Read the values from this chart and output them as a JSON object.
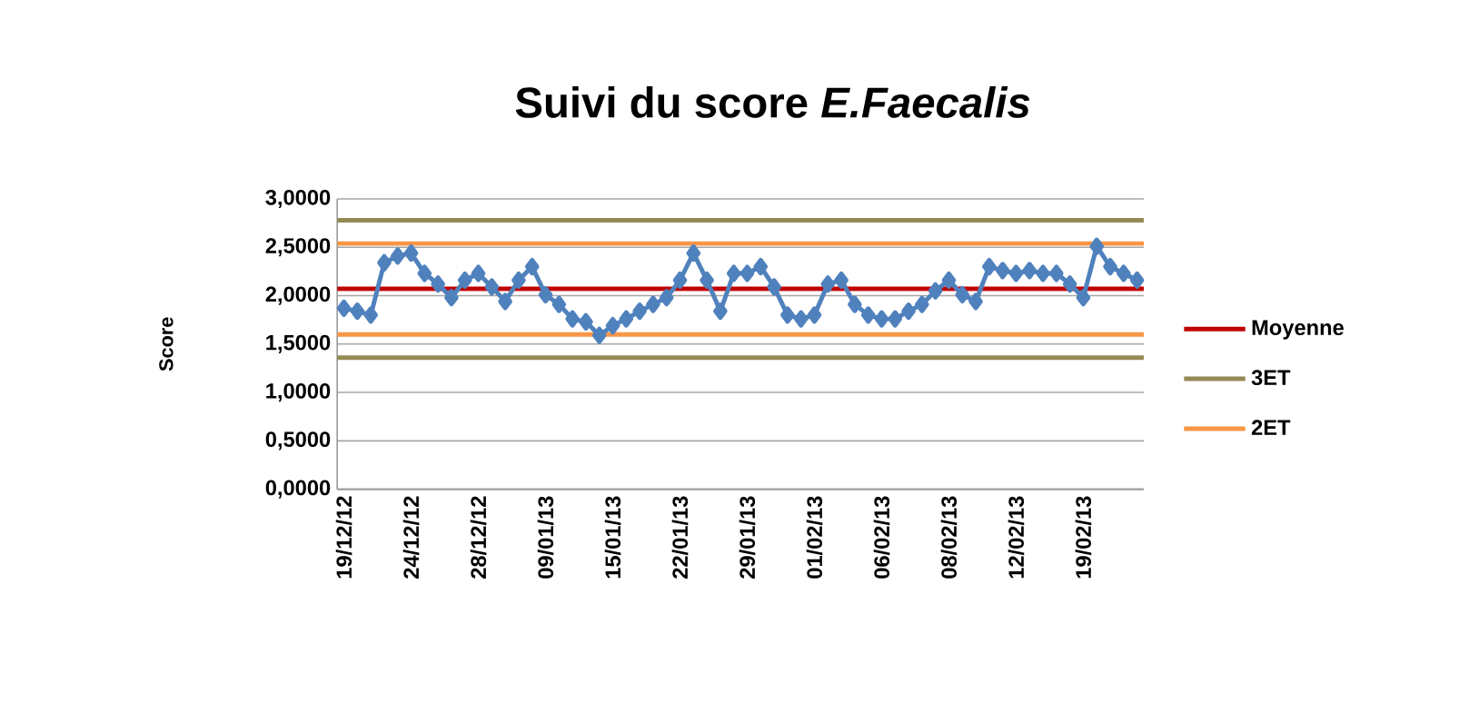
{
  "chart_data": {
    "type": "line",
    "title": "Suivi du score *E.Faecalis*",
    "ylabel": "Score",
    "categories": [
      "19/12/12",
      null,
      null,
      null,
      null,
      "24/12/12",
      null,
      null,
      null,
      null,
      "28/12/12",
      null,
      null,
      null,
      null,
      "09/01/13",
      null,
      null,
      null,
      null,
      "15/01/13",
      null,
      null,
      null,
      null,
      "22/01/13",
      null,
      null,
      null,
      null,
      "29/01/13",
      null,
      null,
      null,
      null,
      "01/02/13",
      null,
      null,
      null,
      null,
      "06/02/13",
      null,
      null,
      null,
      null,
      "08/02/13",
      null,
      null,
      null,
      null,
      "12/02/13",
      null,
      null,
      null,
      null,
      "19/02/13",
      null,
      null,
      null,
      null
    ],
    "series": [
      {
        "color": "#4f81bd",
        "values": [
          1.87,
          1.84,
          1.8,
          2.34,
          2.41,
          2.44,
          2.23,
          2.12,
          1.98,
          2.16,
          2.23,
          2.09,
          1.94,
          2.16,
          2.3,
          2.01,
          1.91,
          1.76,
          1.73,
          1.59,
          1.69,
          1.76,
          1.84,
          1.91,
          1.98,
          2.16,
          2.44,
          2.16,
          1.84,
          2.23,
          2.23,
          2.3,
          2.09,
          1.8,
          1.76,
          1.8,
          2.12,
          2.16,
          1.91,
          1.8,
          1.76,
          1.76,
          1.84,
          1.91,
          2.05,
          2.16,
          2.01,
          1.94,
          2.3,
          2.26,
          2.23,
          2.26,
          2.23,
          2.23,
          2.12,
          1.98,
          2.51,
          2.3,
          2.23,
          2.16
        ]
      }
    ],
    "ref_lines": [
      {
        "axis": "y",
        "value": 2.07,
        "label": "Moyenne",
        "color": "#c00000"
      },
      {
        "axis": "y",
        "value": 2.78,
        "label": "3ET",
        "color": "#948a54"
      },
      {
        "axis": "y",
        "value": 1.36,
        "color": "#948a54"
      },
      {
        "axis": "y",
        "value": 2.54,
        "label": "2ET",
        "color": "#f79646"
      },
      {
        "axis": "y",
        "value": 1.6,
        "color": "#f79646"
      }
    ],
    "ylim": [
      0,
      3
    ],
    "yticks": [
      {
        "value": 0,
        "label": "0,0000"
      },
      {
        "value": 0.5,
        "label": "0,5000"
      },
      {
        "value": 1,
        "label": "1,0000"
      },
      {
        "value": 1.5,
        "label": "1,5000"
      },
      {
        "value": 2,
        "label": "2,0000"
      },
      {
        "value": 2.5,
        "label": "2,5000"
      },
      {
        "value": 3,
        "label": "3,0000"
      }
    ],
    "grid": "y",
    "legend": "right",
    "marker": "diamond",
    "line_style": "solid"
  }
}
